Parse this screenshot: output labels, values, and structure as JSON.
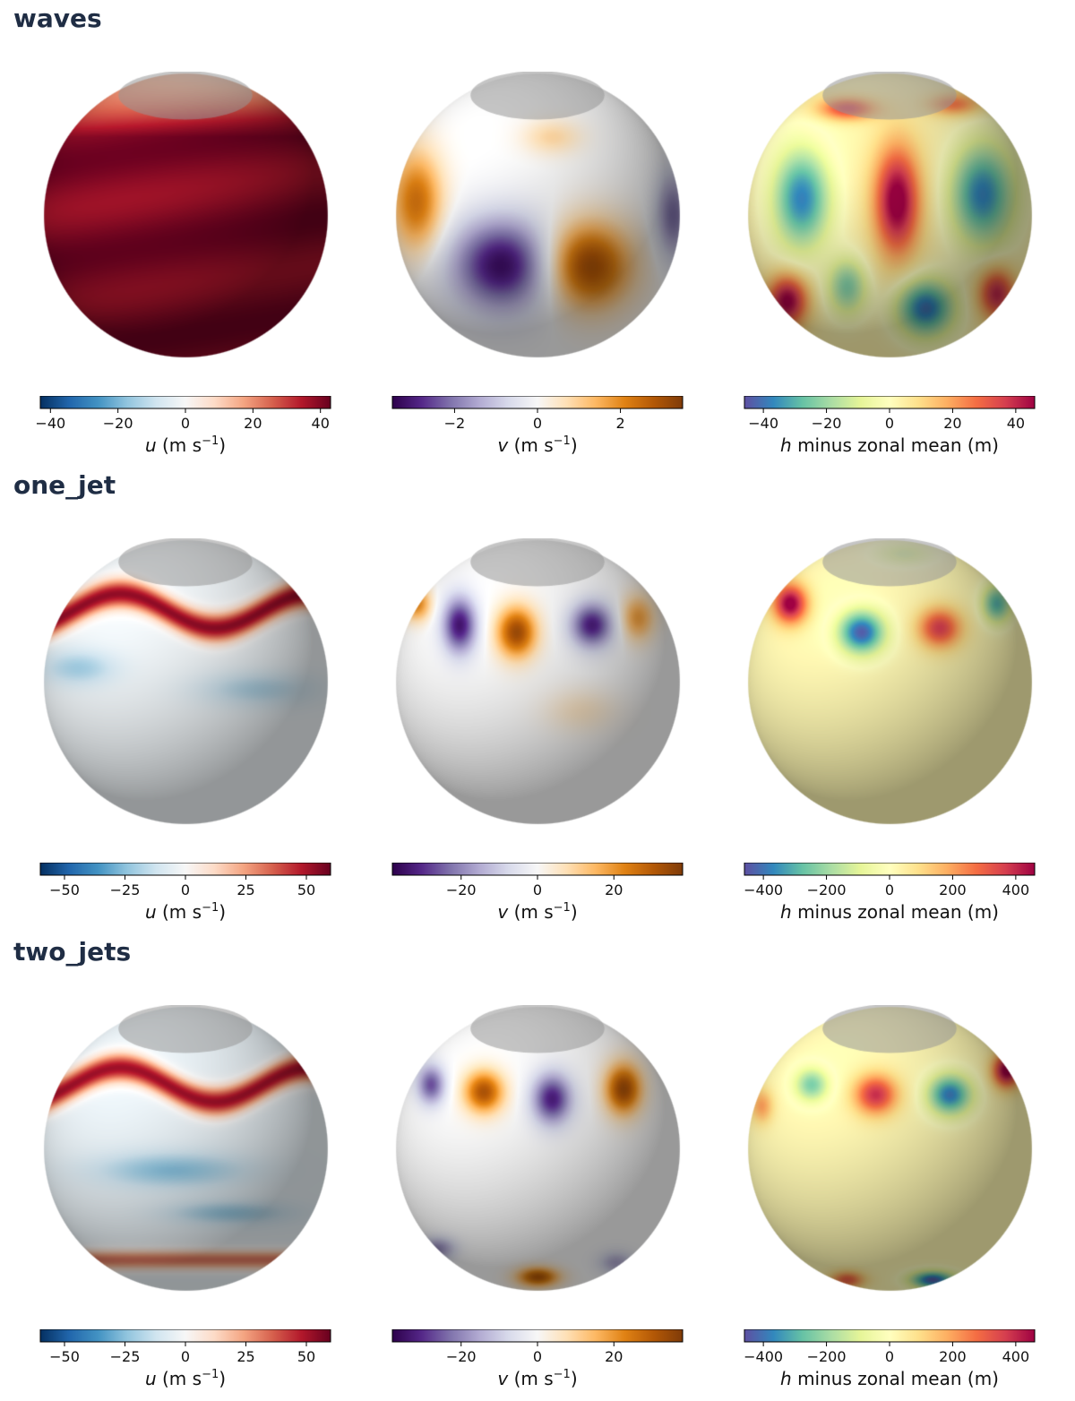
{
  "colormaps": {
    "RdBu_r": [
      "#053061",
      "#2166ac",
      "#4393c3",
      "#92c5de",
      "#d1e5f0",
      "#f7f7f7",
      "#fddbc7",
      "#f4a582",
      "#d6604d",
      "#b2182b",
      "#67001f"
    ],
    "PuOr_r": [
      "#2d004b",
      "#542788",
      "#8073ac",
      "#b2abd2",
      "#d8daeb",
      "#f7f7f7",
      "#fee0b6",
      "#fdb863",
      "#e08214",
      "#b35806",
      "#7f3b08"
    ],
    "Spectral_r": [
      "#5e4fa2",
      "#3288bd",
      "#66c2a5",
      "#abdda4",
      "#e6f598",
      "#ffffbf",
      "#fee08b",
      "#fdae61",
      "#f46d43",
      "#d53e4f",
      "#9e0142"
    ]
  },
  "sections": [
    {
      "title": "waves",
      "charts": [
        {
          "type": "heatmap",
          "cmap": "RdBu_r",
          "colorbar": {
            "vmin": -43,
            "vmax": 43,
            "ticks": [
              -40,
              -20,
              0,
              20,
              40
            ],
            "tick_labels": [
              "−40",
              "−20",
              "0",
              "20",
              "40"
            ]
          },
          "label": {
            "var": "u",
            "unit": "(m s",
            "sup": "−1",
            "close": ")"
          },
          "sphere": {
            "base": 0.92,
            "pattern": "band",
            "amp": 0.12,
            "lat": 0.0,
            "m": 3,
            "polar_band": 0.55
          },
          "blobs": []
        },
        {
          "type": "heatmap",
          "cmap": "PuOr_r",
          "colorbar": {
            "vmin": -3.5,
            "vmax": 3.5,
            "ticks": [
              -2,
              0,
              2
            ],
            "tick_labels": [
              "−2",
              "0",
              "2"
            ]
          },
          "label": {
            "var": "v",
            "unit": "(m s",
            "sup": "−1",
            "close": ")"
          },
          "sphere": {
            "base": 0.0
          },
          "blobs": [
            {
              "x": -0.25,
              "y": 0.35,
              "rx": 0.35,
              "ry": 0.32,
              "v": -0.95
            },
            {
              "x": 0.35,
              "y": 0.35,
              "rx": 0.3,
              "ry": 0.3,
              "v": 0.9
            },
            {
              "x": -0.85,
              "y": -0.1,
              "rx": 0.18,
              "ry": 0.35,
              "v": 0.7
            },
            {
              "x": 0.95,
              "y": 0.0,
              "rx": 0.12,
              "ry": 0.3,
              "v": -0.6
            },
            {
              "x": 0.1,
              "y": -0.55,
              "rx": 0.2,
              "ry": 0.12,
              "v": 0.25
            }
          ]
        },
        {
          "type": "heatmap",
          "cmap": "Spectral_r",
          "colorbar": {
            "vmin": -46,
            "vmax": 46,
            "ticks": [
              -40,
              -20,
              0,
              20,
              40
            ],
            "tick_labels": [
              "−40",
              "−20",
              "0",
              "20",
              "40"
            ]
          },
          "label": {
            "var": "h",
            "unit": "minus zonal mean (m)",
            "sup": "",
            "close": ""
          },
          "sphere": {
            "base": 0.08
          },
          "blobs": [
            {
              "x": -0.62,
              "y": -0.12,
              "rx": 0.2,
              "ry": 0.35,
              "v": -0.9
            },
            {
              "x": 0.05,
              "y": -0.1,
              "rx": 0.16,
              "ry": 0.38,
              "v": 1.0
            },
            {
              "x": 0.65,
              "y": -0.15,
              "rx": 0.22,
              "ry": 0.35,
              "v": -0.9
            },
            {
              "x": -0.72,
              "y": 0.6,
              "rx": 0.14,
              "ry": 0.18,
              "v": 0.95
            },
            {
              "x": -0.3,
              "y": 0.5,
              "rx": 0.14,
              "ry": 0.2,
              "v": -0.6
            },
            {
              "x": 0.25,
              "y": 0.65,
              "rx": 0.2,
              "ry": 0.2,
              "v": -0.95
            },
            {
              "x": 0.75,
              "y": 0.55,
              "rx": 0.13,
              "ry": 0.18,
              "v": 0.8
            },
            {
              "x": -0.3,
              "y": -0.75,
              "rx": 0.2,
              "ry": 0.08,
              "v": 0.7
            },
            {
              "x": 0.45,
              "y": -0.78,
              "rx": 0.18,
              "ry": 0.08,
              "v": 0.5
            }
          ]
        }
      ]
    },
    {
      "title": "one_jet",
      "charts": [
        {
          "type": "heatmap",
          "cmap": "RdBu_r",
          "colorbar": {
            "vmin": -60,
            "vmax": 60,
            "ticks": [
              -50,
              -25,
              0,
              25,
              50
            ],
            "tick_labels": [
              "−50",
              "−25",
              "0",
              "25",
              "50"
            ]
          },
          "label": {
            "var": "u",
            "unit": "(m s",
            "sup": "−1",
            "close": ")"
          },
          "sphere": {
            "base": -0.05,
            "pattern": "jet",
            "amp": 0.95,
            "lat": -0.5,
            "m": 4,
            "width": 0.1,
            "wave": 0.12
          },
          "blobs": [
            {
              "x": -0.75,
              "y": -0.1,
              "rx": 0.25,
              "ry": 0.12,
              "v": -0.3
            },
            {
              "x": 0.5,
              "y": 0.05,
              "rx": 0.4,
              "ry": 0.12,
              "v": -0.25
            }
          ]
        },
        {
          "type": "heatmap",
          "cmap": "PuOr_r",
          "colorbar": {
            "vmin": -38,
            "vmax": 38,
            "ticks": [
              -20,
              0,
              20
            ],
            "tick_labels": [
              "−20",
              "0",
              "20"
            ]
          },
          "label": {
            "var": "v",
            "unit": "(m s",
            "sup": "−1",
            "close": ")"
          },
          "sphere": {
            "base": 0.0
          },
          "blobs": [
            {
              "x": -0.55,
              "y": -0.4,
              "rx": 0.12,
              "ry": 0.2,
              "v": -0.9
            },
            {
              "x": -0.15,
              "y": -0.35,
              "rx": 0.14,
              "ry": 0.18,
              "v": 0.9
            },
            {
              "x": 0.38,
              "y": -0.4,
              "rx": 0.15,
              "ry": 0.16,
              "v": -0.85
            },
            {
              "x": 0.7,
              "y": -0.45,
              "rx": 0.12,
              "ry": 0.16,
              "v": 0.5
            },
            {
              "x": -0.85,
              "y": -0.55,
              "rx": 0.1,
              "ry": 0.12,
              "v": 0.6
            },
            {
              "x": 0.3,
              "y": 0.2,
              "rx": 0.25,
              "ry": 0.15,
              "v": 0.15
            }
          ]
        },
        {
          "type": "heatmap",
          "cmap": "Spectral_r",
          "colorbar": {
            "vmin": -460,
            "vmax": 460,
            "ticks": [
              -400,
              -200,
              0,
              200,
              400
            ],
            "tick_labels": [
              "−400",
              "−200",
              "0",
              "200",
              "400"
            ]
          },
          "label": {
            "var": "h",
            "unit": "minus zonal mean (m)",
            "sup": "",
            "close": ""
          },
          "sphere": {
            "base": 0.05
          },
          "blobs": [
            {
              "x": -0.7,
              "y": -0.55,
              "rx": 0.12,
              "ry": 0.14,
              "v": 1.0
            },
            {
              "x": -0.2,
              "y": -0.35,
              "rx": 0.16,
              "ry": 0.15,
              "v": -1.0
            },
            {
              "x": 0.35,
              "y": -0.38,
              "rx": 0.15,
              "ry": 0.14,
              "v": 0.75
            },
            {
              "x": 0.75,
              "y": -0.55,
              "rx": 0.1,
              "ry": 0.13,
              "v": -0.7
            },
            {
              "x": 0.1,
              "y": -0.9,
              "rx": 0.2,
              "ry": 0.08,
              "v": -0.3
            }
          ]
        }
      ]
    },
    {
      "title": "two_jets",
      "charts": [
        {
          "type": "heatmap",
          "cmap": "RdBu_r",
          "colorbar": {
            "vmin": -60,
            "vmax": 60,
            "ticks": [
              -50,
              -25,
              0,
              25,
              50
            ],
            "tick_labels": [
              "−50",
              "−25",
              "0",
              "25",
              "50"
            ]
          },
          "label": {
            "var": "u",
            "unit": "(m s",
            "sup": "−1",
            "close": ")"
          },
          "sphere": {
            "base": -0.08,
            "pattern": "twojets",
            "amp": 0.95,
            "lat": -0.45,
            "m": 4,
            "width": 0.1,
            "wave": 0.12,
            "lat2": 0.78,
            "amp2": 0.6
          },
          "blobs": [
            {
              "x": -0.1,
              "y": 0.15,
              "rx": 0.5,
              "ry": 0.12,
              "v": -0.35
            },
            {
              "x": 0.3,
              "y": 0.45,
              "rx": 0.4,
              "ry": 0.08,
              "v": -0.3
            }
          ]
        },
        {
          "type": "heatmap",
          "cmap": "PuOr_r",
          "colorbar": {
            "vmin": -38,
            "vmax": 38,
            "ticks": [
              -20,
              0,
              20
            ],
            "tick_labels": [
              "−20",
              "0",
              "20"
            ]
          },
          "label": {
            "var": "v",
            "unit": "(m s",
            "sup": "−1",
            "close": ")"
          },
          "sphere": {
            "base": 0.0
          },
          "blobs": [
            {
              "x": -0.75,
              "y": -0.45,
              "rx": 0.1,
              "ry": 0.14,
              "v": -0.7
            },
            {
              "x": -0.38,
              "y": -0.4,
              "rx": 0.14,
              "ry": 0.15,
              "v": 0.85
            },
            {
              "x": 0.1,
              "y": -0.35,
              "rx": 0.14,
              "ry": 0.18,
              "v": -0.85
            },
            {
              "x": 0.6,
              "y": -0.42,
              "rx": 0.13,
              "ry": 0.18,
              "v": 0.9
            },
            {
              "x": 0.0,
              "y": 0.9,
              "rx": 0.15,
              "ry": 0.07,
              "v": 0.8
            },
            {
              "x": -0.7,
              "y": 0.7,
              "rx": 0.12,
              "ry": 0.08,
              "v": -0.5
            },
            {
              "x": 0.55,
              "y": 0.8,
              "rx": 0.12,
              "ry": 0.08,
              "v": -0.4
            }
          ]
        },
        {
          "type": "heatmap",
          "cmap": "Spectral_r",
          "colorbar": {
            "vmin": -460,
            "vmax": 460,
            "ticks": [
              -400,
              -200,
              0,
              200,
              400
            ],
            "tick_labels": [
              "−400",
              "−200",
              "0",
              "200",
              "400"
            ]
          },
          "label": {
            "var": "h",
            "unit": "minus zonal mean (m)",
            "sup": "",
            "close": ""
          },
          "sphere": {
            "base": 0.05
          },
          "blobs": [
            {
              "x": -0.55,
              "y": -0.45,
              "rx": 0.12,
              "ry": 0.12,
              "v": -0.6
            },
            {
              "x": -0.1,
              "y": -0.38,
              "rx": 0.15,
              "ry": 0.14,
              "v": 0.8
            },
            {
              "x": 0.42,
              "y": -0.38,
              "rx": 0.15,
              "ry": 0.14,
              "v": -0.9
            },
            {
              "x": 0.82,
              "y": -0.55,
              "rx": 0.1,
              "ry": 0.12,
              "v": 1.0
            },
            {
              "x": 0.3,
              "y": 0.92,
              "rx": 0.15,
              "ry": 0.06,
              "v": -1.0
            },
            {
              "x": -0.3,
              "y": 0.92,
              "rx": 0.12,
              "ry": 0.06,
              "v": 0.6
            },
            {
              "x": -0.9,
              "y": -0.3,
              "rx": 0.08,
              "ry": 0.12,
              "v": 0.4
            }
          ]
        }
      ]
    }
  ]
}
